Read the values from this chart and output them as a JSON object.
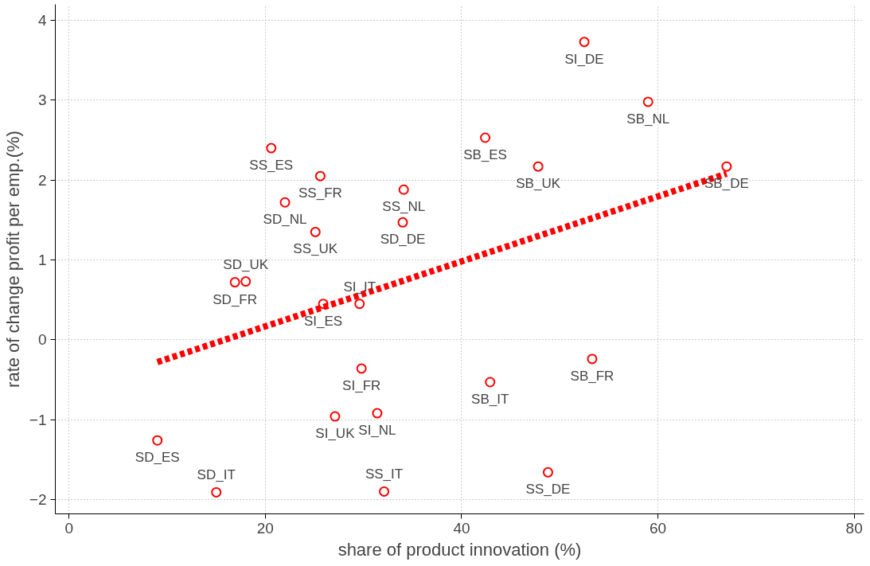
{
  "chart_data": {
    "type": "scatter",
    "xlabel": "share of product innovation (%)",
    "ylabel": "rate of change profit per emp.(%)",
    "xlim": [
      -1.4,
      81
    ],
    "ylim": [
      -2.18,
      4.2
    ],
    "xticks": [
      0,
      20,
      40,
      60,
      80
    ],
    "yticks": [
      -2,
      -1,
      0,
      1,
      2,
      3,
      4
    ],
    "grid": true,
    "series": [
      {
        "color": "#ff0000",
        "marker": "circle",
        "x": [
          52.5,
          59.0,
          67.0,
          42.4,
          47.8,
          20.6,
          25.6,
          22.0,
          34.1,
          34.0,
          25.1,
          16.9,
          18.0,
          25.9,
          29.6,
          29.8,
          53.3,
          42.9,
          27.1,
          31.4,
          9.0,
          15.0,
          32.1,
          48.8
        ],
        "values": [
          3.73,
          2.98,
          2.17,
          2.53,
          2.17,
          2.4,
          2.05,
          1.72,
          1.88,
          1.47,
          1.35,
          0.72,
          0.73,
          0.45,
          0.45,
          -0.36,
          -0.24,
          -0.53,
          -0.96,
          -0.92,
          -1.26,
          -1.91,
          -1.9,
          -1.66
        ]
      },
      {
        "type": "line",
        "color": "#ff0000",
        "line_style": "dashed",
        "marker": "none",
        "x": [
          9.0,
          67.0
        ],
        "values": [
          -0.28,
          2.08
        ]
      }
    ],
    "annotations": [
      {
        "text": "SI_DE",
        "x": 52.5,
        "y": 3.73
      },
      {
        "text": "SB_NL",
        "x": 59.0,
        "y": 2.98
      },
      {
        "text": "SB_DE",
        "x": 67.0,
        "y": 2.17
      },
      {
        "text": "SB_ES",
        "x": 42.4,
        "y": 2.53
      },
      {
        "text": "SB_UK",
        "x": 47.8,
        "y": 2.17
      },
      {
        "text": "SS_ES",
        "x": 20.6,
        "y": 2.4
      },
      {
        "text": "SS_FR",
        "x": 25.6,
        "y": 2.05
      },
      {
        "text": "SD_NL",
        "x": 22.0,
        "y": 1.72
      },
      {
        "text": "SS_NL",
        "x": 34.1,
        "y": 1.88
      },
      {
        "text": "SD_DE",
        "x": 34.0,
        "y": 1.47
      },
      {
        "text": "SS_UK",
        "x": 25.1,
        "y": 1.35
      },
      {
        "text": "SD_FR",
        "x": 16.9,
        "y": 0.72
      },
      {
        "text": "SD_UK",
        "x": 18.0,
        "y": 0.73
      },
      {
        "text": "SI_ES",
        "x": 25.9,
        "y": 0.45
      },
      {
        "text": "SI_IT",
        "x": 29.6,
        "y": 0.45
      },
      {
        "text": "SI_FR",
        "x": 29.8,
        "y": -0.36
      },
      {
        "text": "SB_FR",
        "x": 53.3,
        "y": -0.24
      },
      {
        "text": "SB_IT",
        "x": 42.9,
        "y": -0.53
      },
      {
        "text": "SI_UK",
        "x": 27.1,
        "y": -0.96
      },
      {
        "text": "SI_NL",
        "x": 31.4,
        "y": -0.92
      },
      {
        "text": "SD_ES",
        "x": 9.0,
        "y": -1.26
      },
      {
        "text": "SD_IT",
        "x": 15.0,
        "y": -1.91
      },
      {
        "text": "SS_IT",
        "x": 32.1,
        "y": -1.9
      },
      {
        "text": "SS_DE",
        "x": 48.8,
        "y": -1.66
      }
    ]
  }
}
